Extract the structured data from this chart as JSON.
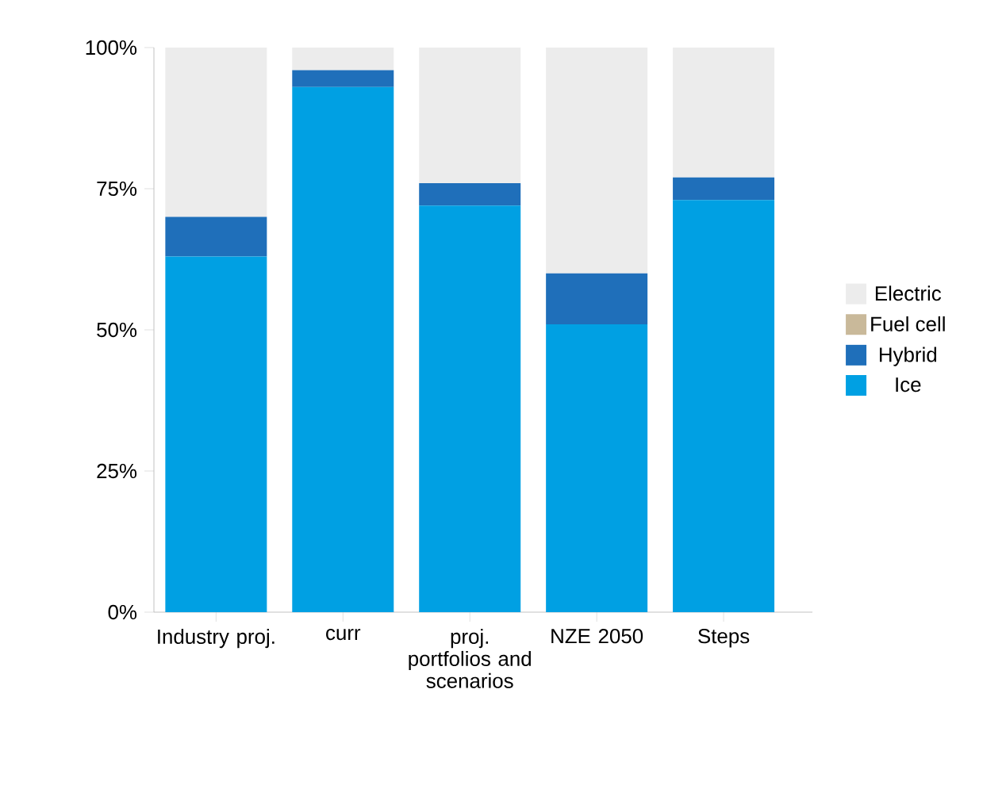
{
  "chart_data": {
    "type": "bar",
    "stacked": true,
    "categories": [
      "Industry proj.",
      "curr",
      "proj. portfolios and scenarios",
      "NZE 2050",
      "Steps"
    ],
    "series": [
      {
        "name": "Ice",
        "color": "#00a0e3",
        "values": [
          63,
          93,
          72,
          51,
          73
        ]
      },
      {
        "name": "Hybrid",
        "color": "#1f6fba",
        "values": [
          7,
          3,
          4,
          9,
          4
        ]
      },
      {
        "name": "Fuel cell",
        "color": "#c9b99a",
        "values": [
          0,
          0,
          0,
          0,
          0
        ]
      },
      {
        "name": "Electric",
        "color": "#ececec",
        "values": [
          30,
          4,
          24,
          40,
          23
        ]
      }
    ],
    "ylim": [
      0,
      100
    ],
    "yticks": [
      {
        "value": 0,
        "label": "0%"
      },
      {
        "value": 25,
        "label": "25%"
      },
      {
        "value": 50,
        "label": "50%"
      },
      {
        "value": 75,
        "label": "75%"
      },
      {
        "value": 100,
        "label": "100%"
      }
    ],
    "legend": "right",
    "grid": false
  }
}
